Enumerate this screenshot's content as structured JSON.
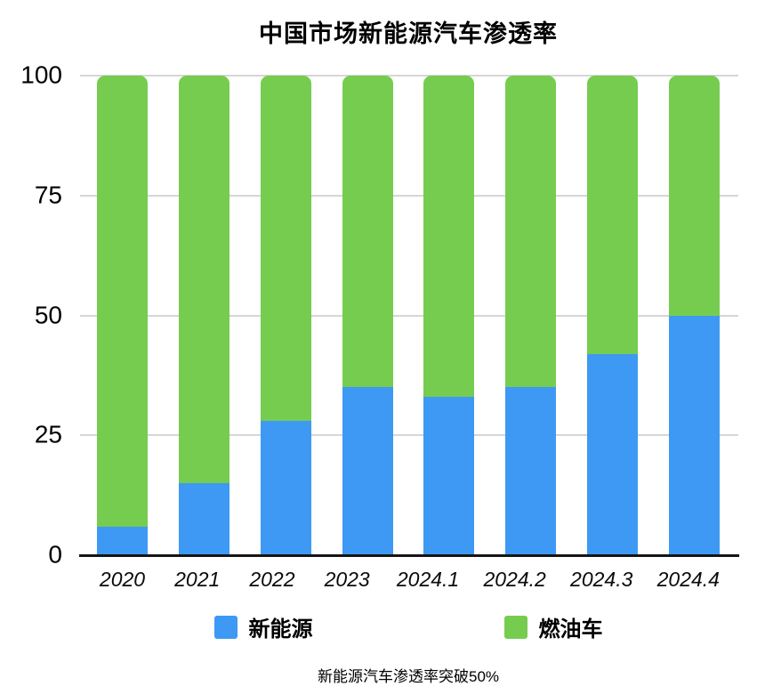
{
  "chart_data": {
    "type": "bar",
    "stacked": true,
    "title": "中国市场新能源汽车渗透率",
    "categories": [
      "2020",
      "2021",
      "2022",
      "2023",
      "2024.1",
      "2024.2",
      "2024.3",
      "2024.4"
    ],
    "series": [
      {
        "name": "新能源",
        "color": "#3D99F4",
        "values": [
          6,
          15,
          28,
          35,
          33,
          35,
          42,
          50
        ]
      },
      {
        "name": "燃油车",
        "color": "#76CC4F",
        "values": [
          94,
          85,
          72,
          65,
          67,
          65,
          58,
          50
        ]
      }
    ],
    "xlabel": "",
    "ylabel": "",
    "ylim": [
      0,
      100
    ],
    "yticks": [
      0,
      25,
      50,
      75,
      100
    ],
    "grid": true,
    "grid_color": "#d6d6d6",
    "axis_color": "#151515",
    "background": "#ffffff",
    "legend_position": "bottom",
    "bar_corner": "rounded-top"
  },
  "caption": "新能源汽车渗透率突破50%"
}
